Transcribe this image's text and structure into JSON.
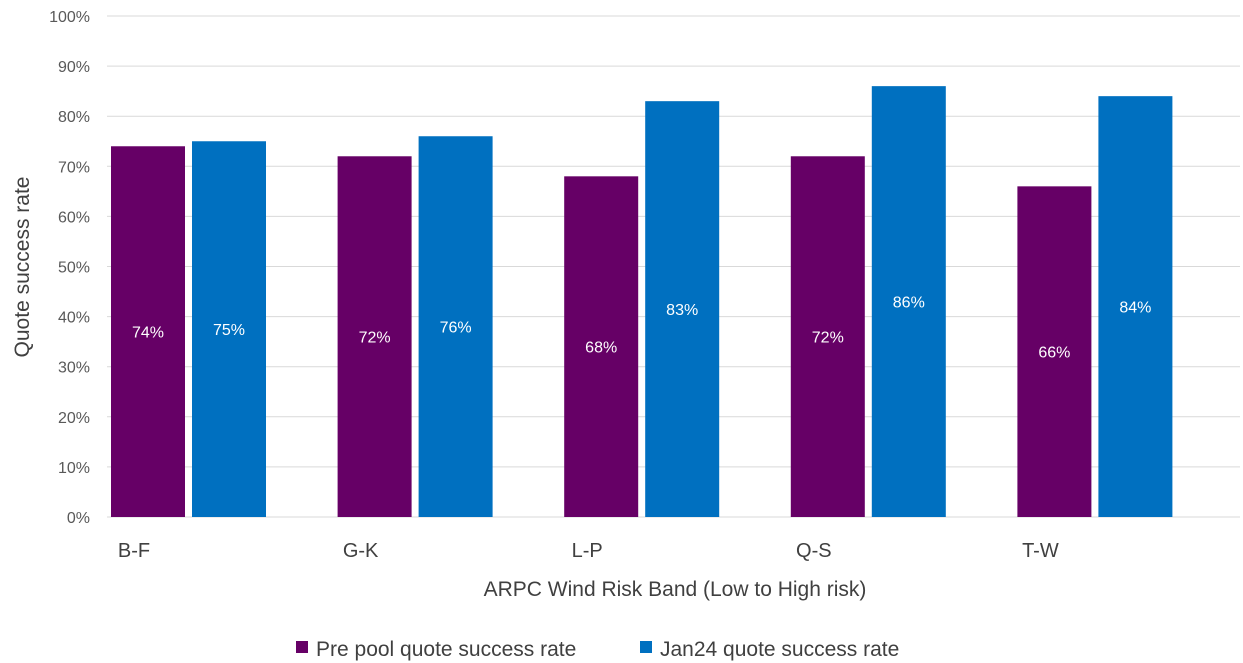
{
  "chart_data": {
    "type": "bar",
    "categories": [
      "B-F",
      "G-K",
      "L-P",
      "Q-S",
      "T-W"
    ],
    "series": [
      {
        "name": "Pre pool quote success rate",
        "color": "#660066",
        "values": [
          74,
          72,
          68,
          72,
          66
        ],
        "labels": [
          "74%",
          "72%",
          "68%",
          "72%",
          "66%"
        ]
      },
      {
        "name": "Jan24 quote success rate",
        "color": "#0070C0",
        "values": [
          75,
          76,
          83,
          86,
          84
        ],
        "labels": [
          "75%",
          "76%",
          "83%",
          "86%",
          "84%"
        ]
      }
    ],
    "xlabel": "ARPC Wind Risk Band (Low to High risk)",
    "ylabel": "Quote success rate",
    "ylim": [
      0,
      100
    ],
    "yticks": [
      0,
      10,
      20,
      30,
      40,
      50,
      60,
      70,
      80,
      90,
      100
    ],
    "ytick_labels": [
      "0%",
      "10%",
      "20%",
      "30%",
      "40%",
      "50%",
      "60%",
      "70%",
      "80%",
      "90%",
      "100%"
    ],
    "grid": true,
    "legend_position": "bottom"
  }
}
